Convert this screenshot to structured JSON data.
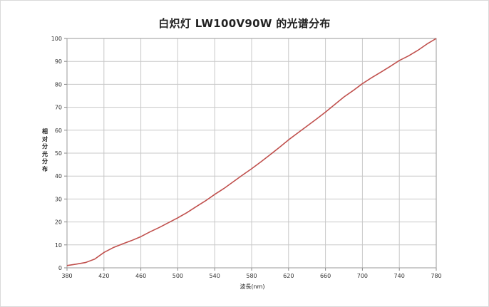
{
  "chart_data": {
    "type": "line",
    "title": "白炽灯 LW100V90W 的光谱分布",
    "xlabel": "波長(nm)",
    "ylabel": "相对分光分布",
    "xlim": [
      380,
      780
    ],
    "ylim": [
      0,
      100
    ],
    "xticks": [
      "380",
      "420",
      "460",
      "500",
      "540",
      "580",
      "620",
      "660",
      "700",
      "740",
      "780"
    ],
    "yticks": [
      "0",
      "10",
      "20",
      "30",
      "40",
      "50",
      "60",
      "70",
      "80",
      "90",
      "100"
    ],
    "grid": true,
    "series": [
      {
        "color": "#c0504d",
        "x": [
          380,
          390,
          400,
          410,
          420,
          430,
          440,
          450,
          460,
          470,
          480,
          490,
          500,
          510,
          520,
          530,
          540,
          550,
          560,
          570,
          580,
          590,
          600,
          610,
          620,
          630,
          640,
          650,
          660,
          670,
          680,
          690,
          700,
          710,
          720,
          730,
          740,
          750,
          760,
          770,
          780
        ],
        "y": [
          1,
          1.6,
          2.3,
          3.8,
          6.7,
          8.8,
          10.4,
          11.9,
          13.6,
          15.7,
          17.6,
          19.7,
          21.8,
          24.1,
          26.7,
          29.2,
          32,
          34.6,
          37.5,
          40.4,
          43.2,
          46.2,
          49.3,
          52.5,
          55.8,
          58.8,
          61.8,
          64.8,
          67.9,
          71.2,
          74.5,
          77.3,
          80.3,
          82.9,
          85.3,
          87.8,
          90.4,
          92.4,
          94.8,
          97.6,
          100
        ]
      }
    ]
  }
}
